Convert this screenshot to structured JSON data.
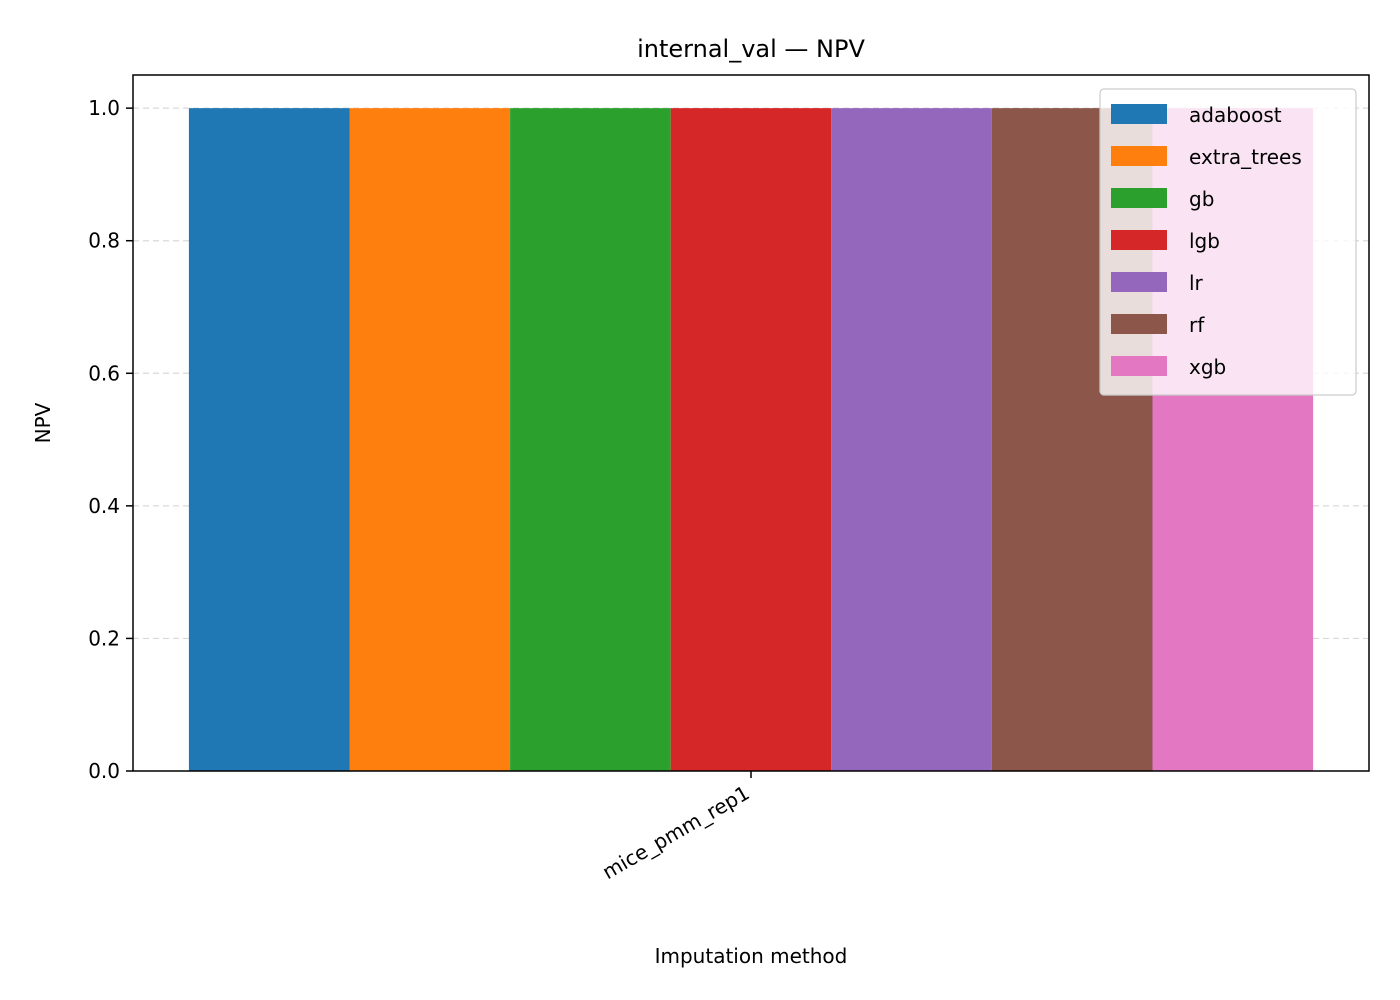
{
  "chart_data": {
    "type": "bar",
    "title": "internal_val — NPV",
    "xlabel": "Imputation method",
    "ylabel": "NPV",
    "categories": [
      "mice_pmm_rep1"
    ],
    "ylim": [
      0,
      1.05
    ],
    "yticks": [
      0.0,
      0.2,
      0.4,
      0.6,
      0.8,
      1.0
    ],
    "ytick_labels": [
      "0.0",
      "0.2",
      "0.4",
      "0.6",
      "0.8",
      "1.0"
    ],
    "grid": "y-dashed",
    "legend_position": "top-right",
    "series": [
      {
        "name": "adaboost",
        "color": "#1f77b4",
        "values": [
          1.0
        ]
      },
      {
        "name": "extra_trees",
        "color": "#ff7f0e",
        "values": [
          1.0
        ]
      },
      {
        "name": "gb",
        "color": "#2ca02c",
        "values": [
          1.0
        ]
      },
      {
        "name": "lgb",
        "color": "#d62728",
        "values": [
          1.0
        ]
      },
      {
        "name": "lr",
        "color": "#9467bd",
        "values": [
          1.0
        ]
      },
      {
        "name": "rf",
        "color": "#8c564b",
        "values": [
          1.0
        ]
      },
      {
        "name": "xgb",
        "color": "#e377c2",
        "values": [
          1.0
        ]
      }
    ]
  }
}
